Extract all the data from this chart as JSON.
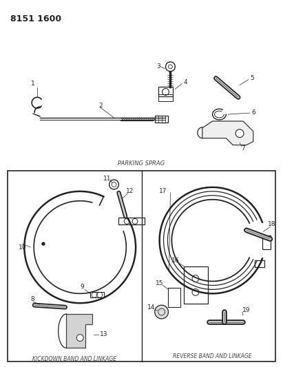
{
  "title_code": "8151 1600",
  "bg_color": "#ffffff",
  "line_color": "#222222",
  "text_color": "#444444",
  "section1_label": "PARKING SPRAG",
  "section2_label": "KICKDOWN BAND AND LINKAGE",
  "section3_label": "REVERSE BAND AND LINKAGE",
  "figsize": [
    4.11,
    5.33
  ],
  "dpi": 100
}
